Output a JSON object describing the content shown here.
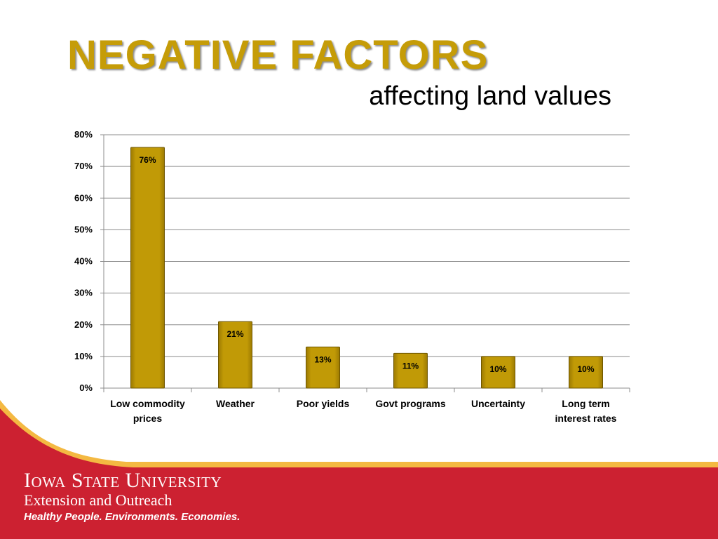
{
  "slide": {
    "title": "NEGATIVE FACTORS",
    "subtitle": "affecting land values"
  },
  "chart_data": {
    "type": "bar",
    "categories": [
      "Low commodity prices",
      "Weather",
      "Poor yields",
      "Govt programs",
      "Uncertainty",
      "Long term interest rates"
    ],
    "category_lines": [
      [
        "Low commodity",
        "prices"
      ],
      [
        "Weather"
      ],
      [
        "Poor yields"
      ],
      [
        "Govt programs"
      ],
      [
        "Uncertainty"
      ],
      [
        "Long term",
        "interest rates"
      ]
    ],
    "values": [
      76,
      21,
      13,
      11,
      10,
      10
    ],
    "data_labels": [
      "76%",
      "21%",
      "13%",
      "11%",
      "10%",
      "10%"
    ],
    "y_ticks": [
      0,
      10,
      20,
      30,
      40,
      50,
      60,
      70,
      80
    ],
    "y_tick_labels": [
      "0%",
      "10%",
      "20%",
      "30%",
      "40%",
      "50%",
      "60%",
      "70%",
      "80%"
    ],
    "ylim": [
      0,
      80
    ],
    "grid": true,
    "legend": "none",
    "bar_color": "#c19a06"
  },
  "footer": {
    "university": "Iowa State University",
    "unit": "Extension and Outreach",
    "tagline": "Healthy People. Environments. Economies.",
    "brand_red": "#cc2131",
    "brand_gold": "#f4b942"
  }
}
